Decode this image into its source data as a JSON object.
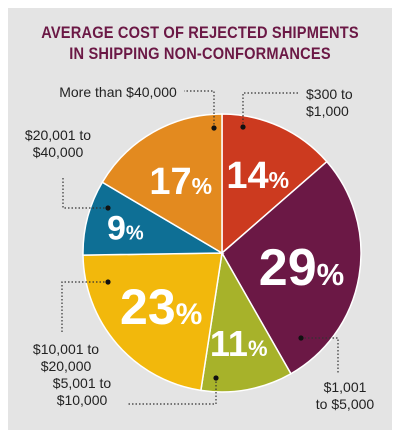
{
  "title_line1": "AVERAGE COST OF REJECTED SHIPMENTS",
  "title_line2": "IN SHIPPING NON-CONFORMANCES",
  "colors": {
    "background": "#e4e4e4",
    "title": "#6b1845",
    "leader": "#333333"
  },
  "chart_data": {
    "type": "pie",
    "title": "AVERAGE COST OF REJECTED SHIPMENTS IN SHIPPING NON-CONFORMANCES",
    "slices": [
      {
        "label": "$300 to $1,000",
        "label_lines": [
          "$300 to",
          "$1,000"
        ],
        "value": 14,
        "display": "14",
        "color": "#cc3a1f"
      },
      {
        "label": "$1,001 to $5,000",
        "label_lines": [
          "$1,001",
          "to $5,000"
        ],
        "value": 29,
        "display": "29",
        "color": "#6b1845"
      },
      {
        "label": "$5,001 to $10,000",
        "label_lines": [
          "$5,001 to",
          "$10,000"
        ],
        "value": 11,
        "display": "11",
        "color": "#a7b22a"
      },
      {
        "label": "$10,001 to $20,000",
        "label_lines": [
          "$10,001 to",
          "$20,000"
        ],
        "value": 23,
        "display": "23",
        "color": "#f2b80c"
      },
      {
        "label": "$20,001 to $40,000",
        "label_lines": [
          "$20,001 to",
          "$40,000"
        ],
        "value": 9,
        "display": "9",
        "color": "#0e6f95"
      },
      {
        "label": "More than $40,000",
        "label_lines": [
          "More than $40,000"
        ],
        "value": 17,
        "display": "17",
        "color": "#e38a1f"
      }
    ],
    "percent_symbol": "%"
  }
}
